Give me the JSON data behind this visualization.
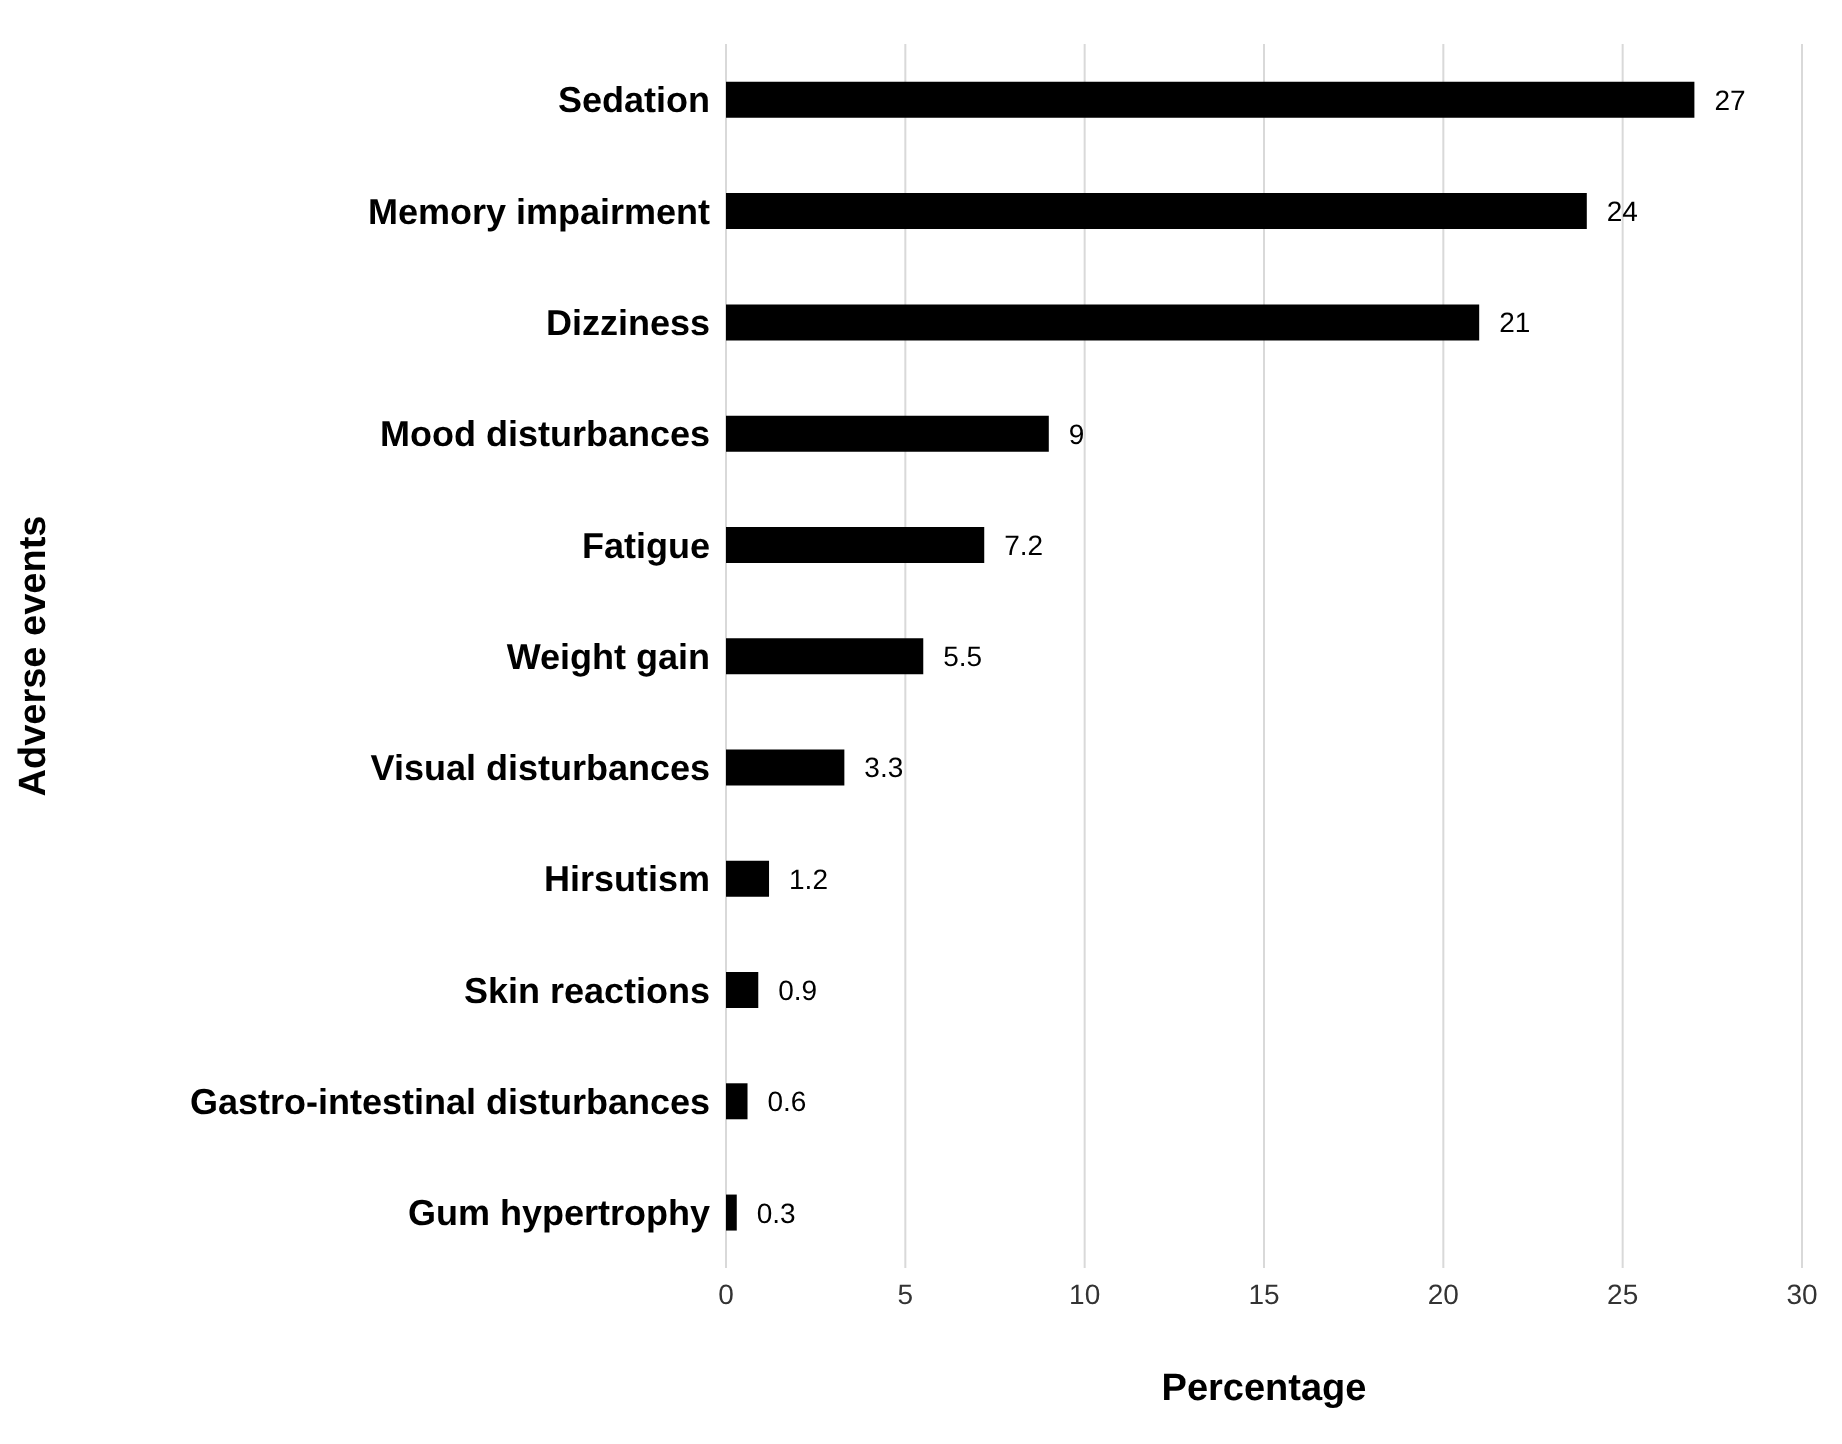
{
  "chart_data": {
    "type": "bar",
    "orientation": "horizontal",
    "xlabel": "Percentage",
    "ylabel": "Adverse events",
    "categories": [
      "Sedation",
      "Memory impairment",
      "Dizziness",
      "Mood disturbances",
      "Fatigue",
      "Weight gain",
      "Visual disturbances",
      "Hirsutism",
      "Skin reactions",
      "Gastro-intestinal disturbances",
      "Gum hypertrophy"
    ],
    "values": [
      27,
      24,
      21,
      9,
      7.2,
      5.5,
      3.3,
      1.2,
      0.9,
      0.6,
      0.3
    ],
    "color": "#000000",
    "xlim": [
      0,
      30
    ],
    "xticks": [
      0,
      5,
      10,
      15,
      20,
      25,
      30
    ],
    "grid": "x",
    "data_labels": true
  }
}
